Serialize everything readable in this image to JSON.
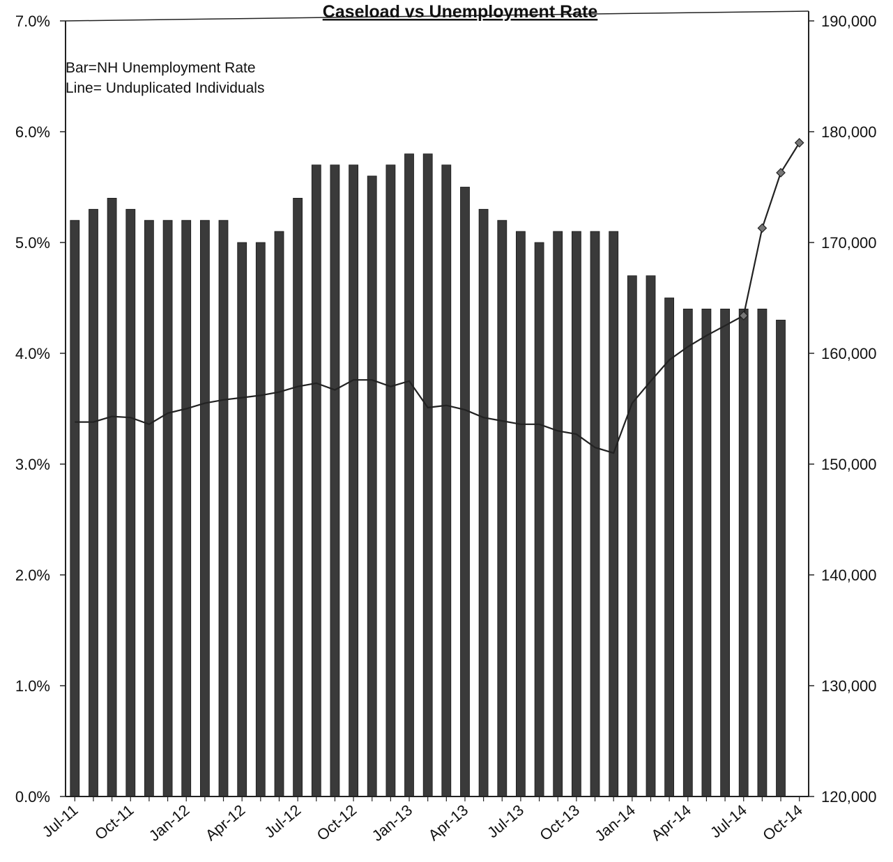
{
  "chart_data": {
    "type": "bar",
    "title": "Caseload vs Unemployment Rate",
    "annotation_lines": [
      "Bar=NH Unemployment Rate",
      "Line= Unduplicated Individuals"
    ],
    "x_tick_labels": [
      "Jul-11",
      "Oct-11",
      "Jan-12",
      "Apr-12",
      "Jul-12",
      "Oct-12",
      "Jan-13",
      "Apr-13",
      "Jul-13",
      "Oct-13",
      "Jan-14",
      "Apr-14",
      "Jul-14",
      "Oct-14"
    ],
    "categories": [
      "Jul-11",
      "Aug-11",
      "Sep-11",
      "Oct-11",
      "Nov-11",
      "Dec-11",
      "Jan-12",
      "Feb-12",
      "Mar-12",
      "Apr-12",
      "May-12",
      "Jun-12",
      "Jul-12",
      "Aug-12",
      "Sep-12",
      "Oct-12",
      "Nov-12",
      "Dec-12",
      "Jan-13",
      "Feb-13",
      "Mar-13",
      "Apr-13",
      "May-13",
      "Jun-13",
      "Jul-13",
      "Aug-13",
      "Sep-13",
      "Oct-13",
      "Nov-13",
      "Dec-13",
      "Jan-14",
      "Feb-14",
      "Mar-14",
      "Apr-14",
      "May-14",
      "Jun-14",
      "Jul-14",
      "Aug-14",
      "Sep-14",
      "Oct-14"
    ],
    "y_left": {
      "ticks": [
        "0.0%",
        "1.0%",
        "2.0%",
        "3.0%",
        "4.0%",
        "5.0%",
        "6.0%",
        "7.0%"
      ],
      "ylim": [
        0,
        7
      ]
    },
    "y_right": {
      "ticks": [
        "120,000",
        "130,000",
        "140,000",
        "150,000",
        "160,000",
        "170,000",
        "180,000",
        "190,000"
      ],
      "ylim": [
        120000,
        190000
      ]
    },
    "series": [
      {
        "type": "bar",
        "axis": "left",
        "color": "#3a3a3a",
        "values": [
          5.2,
          5.3,
          5.4,
          5.3,
          5.2,
          5.2,
          5.2,
          5.2,
          5.2,
          5.0,
          5.0,
          5.1,
          5.4,
          5.7,
          5.7,
          5.7,
          5.6,
          5.7,
          5.8,
          5.8,
          5.7,
          5.5,
          5.3,
          5.2,
          5.1,
          5.0,
          5.1,
          5.1,
          5.1,
          5.1,
          4.7,
          4.7,
          4.5,
          4.4,
          4.4,
          4.4,
          4.4,
          4.4,
          4.3,
          null
        ]
      },
      {
        "type": "line",
        "axis": "right",
        "color": "#222222",
        "values": [
          153800,
          153800,
          154300,
          154200,
          153600,
          154600,
          155000,
          155500,
          155800,
          156000,
          156200,
          156500,
          157000,
          157300,
          156700,
          157600,
          157600,
          157000,
          157500,
          155100,
          155300,
          154900,
          154200,
          153900,
          153600,
          153600,
          153000,
          152700,
          151500,
          151000,
          155500,
          157500,
          159400,
          160600,
          161600,
          162500,
          163400,
          171300,
          176300,
          179000
        ],
        "marker_from_index": 36
      }
    ]
  }
}
